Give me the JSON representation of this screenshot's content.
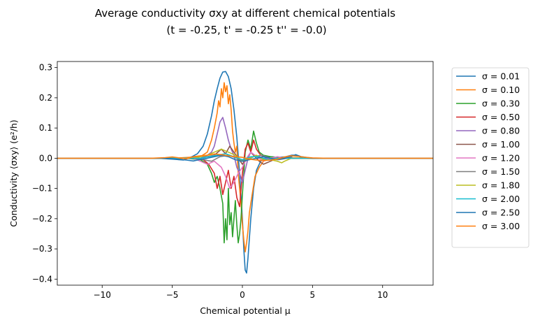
{
  "chart_data": {
    "type": "line",
    "title": "Average conductivity σxy at different chemical potentials",
    "subtitle": "(t = -0.25, t' = -0.25 t'' = -0.0)",
    "xlabel": "Chemical potential μ",
    "ylabel": "Conductivity ⟨σxy⟩ (e²/h)",
    "xlim": [
      -13.2,
      13.6
    ],
    "ylim": [
      -0.42,
      0.32
    ],
    "xticks": [
      -10,
      -5,
      0,
      5,
      10
    ],
    "yticks": [
      -0.4,
      -0.3,
      -0.2,
      -0.1,
      0.0,
      0.1,
      0.2,
      0.3
    ],
    "grid": false,
    "legend_position": "outside-right",
    "series": [
      {
        "name": "σ = 0.01",
        "color": "#1f77b4",
        "x": [
          -13.2,
          -6.0,
          -5.0,
          -4.2,
          -3.6,
          -3.2,
          -2.8,
          -2.5,
          -2.2,
          -2.0,
          -1.8,
          -1.6,
          -1.4,
          -1.2,
          -1.0,
          -0.8,
          -0.6,
          -0.4,
          -0.2,
          0.0,
          0.1,
          0.2,
          0.3,
          0.4,
          0.6,
          0.8,
          1.0,
          1.3,
          1.6,
          2.0,
          2.5,
          3.0,
          3.5,
          3.8,
          4.2,
          5.0,
          6.0,
          13.6
        ],
        "y": [
          0.0,
          0.0,
          -0.003,
          -0.006,
          0.005,
          0.015,
          0.04,
          0.08,
          0.14,
          0.19,
          0.23,
          0.265,
          0.285,
          0.287,
          0.27,
          0.23,
          0.16,
          0.07,
          -0.05,
          -0.2,
          -0.3,
          -0.37,
          -0.38,
          -0.33,
          -0.2,
          -0.1,
          -0.04,
          -0.01,
          0.0,
          0.005,
          0.003,
          0.004,
          0.01,
          0.01,
          0.003,
          0.0,
          0.0,
          0.0
        ]
      },
      {
        "name": "σ = 0.10",
        "color": "#ff7f0e",
        "x": [
          -13.2,
          -5.0,
          -3.0,
          -2.5,
          -2.2,
          -2.0,
          -1.8,
          -1.7,
          -1.6,
          -1.5,
          -1.4,
          -1.3,
          -1.2,
          -1.1,
          -1.0,
          -0.9,
          -0.8,
          -0.7,
          -0.6,
          -0.5,
          -0.4,
          -0.3,
          -0.2,
          -0.1,
          0.0,
          0.1,
          0.2,
          0.3,
          0.4,
          0.5,
          0.7,
          0.9,
          1.2,
          1.5,
          2.0,
          3.0,
          5.0,
          13.6
        ],
        "y": [
          0.0,
          0.0,
          0.005,
          0.02,
          0.06,
          0.1,
          0.15,
          0.19,
          0.17,
          0.23,
          0.2,
          0.25,
          0.22,
          0.24,
          0.18,
          0.21,
          0.16,
          0.09,
          0.05,
          0.02,
          0.04,
          -0.05,
          -0.1,
          -0.15,
          -0.22,
          -0.27,
          -0.31,
          -0.28,
          -0.24,
          -0.18,
          -0.12,
          -0.06,
          -0.03,
          -0.01,
          0.0,
          0.002,
          0.0,
          0.0
        ]
      },
      {
        "name": "σ = 0.30",
        "color": "#2ca02c",
        "x": [
          -13.2,
          -4.0,
          -3.0,
          -2.5,
          -2.2,
          -2.0,
          -1.8,
          -1.6,
          -1.4,
          -1.3,
          -1.2,
          -1.1,
          -1.0,
          -0.9,
          -0.8,
          -0.7,
          -0.6,
          -0.5,
          -0.4,
          -0.3,
          -0.2,
          -0.1,
          0.0,
          0.1,
          0.2,
          0.4,
          0.6,
          0.8,
          1.0,
          1.2,
          1.5,
          2.0,
          3.0,
          4.0,
          13.6
        ],
        "y": [
          0.0,
          0.0,
          -0.005,
          -0.02,
          -0.05,
          -0.08,
          -0.06,
          -0.1,
          -0.15,
          -0.28,
          -0.2,
          -0.27,
          -0.1,
          -0.22,
          -0.18,
          -0.26,
          -0.2,
          -0.14,
          -0.22,
          -0.28,
          -0.25,
          -0.2,
          -0.12,
          -0.05,
          0.02,
          0.06,
          0.03,
          0.09,
          0.05,
          0.02,
          0.01,
          0.005,
          0.0,
          0.0,
          0.0
        ]
      },
      {
        "name": "σ = 0.50",
        "color": "#d62728",
        "x": [
          -13.2,
          -3.5,
          -2.8,
          -2.4,
          -2.0,
          -1.8,
          -1.6,
          -1.4,
          -1.2,
          -1.0,
          -0.8,
          -0.6,
          -0.4,
          -0.2,
          0.0,
          0.2,
          0.4,
          0.6,
          0.8,
          1.0,
          1.3,
          1.6,
          2.0,
          3.0,
          13.6
        ],
        "y": [
          0.0,
          0.0,
          -0.005,
          -0.02,
          -0.05,
          -0.1,
          -0.06,
          -0.12,
          -0.08,
          -0.04,
          -0.1,
          -0.06,
          -0.13,
          -0.16,
          -0.05,
          0.03,
          0.05,
          0.02,
          0.06,
          0.03,
          0.01,
          0.005,
          0.0,
          0.0,
          0.0
        ]
      },
      {
        "name": "σ = 0.80",
        "color": "#9467bd",
        "x": [
          -13.2,
          -3.0,
          -2.5,
          -2.2,
          -2.0,
          -1.8,
          -1.6,
          -1.4,
          -1.2,
          -1.0,
          -0.8,
          -0.6,
          -0.4,
          -0.2,
          0.0,
          0.2,
          0.4,
          0.6,
          0.8,
          1.0,
          1.4,
          2.0,
          3.0,
          13.6
        ],
        "y": [
          0.0,
          0.0,
          0.01,
          0.02,
          0.04,
          0.08,
          0.12,
          0.135,
          0.1,
          0.06,
          0.03,
          0.01,
          -0.03,
          -0.05,
          -0.08,
          -0.04,
          0.0,
          0.02,
          0.01,
          0.0,
          0.0,
          0.0,
          0.0,
          0.0
        ]
      },
      {
        "name": "σ = 1.00",
        "color": "#8c564b",
        "x": [
          -13.2,
          -3.0,
          -2.5,
          -2.0,
          -1.5,
          -1.2,
          -0.9,
          -0.6,
          -0.3,
          0.0,
          0.3,
          0.6,
          0.9,
          1.2,
          1.5,
          2.0,
          2.5,
          3.0,
          13.6
        ],
        "y": [
          0.0,
          0.0,
          0.005,
          0.01,
          0.03,
          0.015,
          0.04,
          0.02,
          0.0,
          -0.02,
          0.0,
          0.02,
          0.005,
          -0.01,
          -0.02,
          -0.01,
          0.0,
          0.0,
          0.0
        ]
      },
      {
        "name": "σ = 1.20",
        "color": "#e377c2",
        "x": [
          -13.2,
          -3.5,
          -3.0,
          -2.5,
          -2.0,
          -1.5,
          -1.2,
          -0.9,
          -0.6,
          -0.3,
          0.0,
          0.3,
          0.6,
          0.9,
          1.2,
          1.5,
          2.0,
          2.5,
          3.0,
          3.5,
          13.6
        ],
        "y": [
          0.0,
          0.0,
          -0.01,
          -0.02,
          -0.01,
          -0.03,
          -0.06,
          -0.1,
          -0.08,
          -0.05,
          -0.03,
          0.0,
          0.02,
          0.01,
          0.0,
          -0.01,
          0.0,
          0.005,
          0.0,
          0.0,
          0.0
        ]
      },
      {
        "name": "σ = 1.50",
        "color": "#7f7f7f",
        "x": [
          -13.2,
          -3.5,
          -2.8,
          -2.2,
          -1.6,
          -1.0,
          -0.4,
          0.2,
          0.8,
          1.4,
          2.0,
          2.6,
          3.2,
          13.6
        ],
        "y": [
          0.0,
          0.0,
          -0.005,
          -0.01,
          0.005,
          0.01,
          0.0,
          -0.01,
          0.005,
          0.01,
          0.0,
          -0.005,
          0.0,
          0.0
        ]
      },
      {
        "name": "σ = 1.80",
        "color": "#bcbd22",
        "x": [
          -13.2,
          -3.5,
          -3.0,
          -2.5,
          -2.0,
          -1.5,
          -1.0,
          -0.5,
          0.0,
          0.5,
          1.0,
          1.5,
          2.0,
          2.5,
          2.8,
          3.0,
          3.5,
          13.6
        ],
        "y": [
          0.0,
          0.0,
          0.005,
          0.01,
          0.02,
          0.03,
          0.02,
          0.01,
          -0.01,
          0.0,
          0.01,
          -0.005,
          -0.005,
          -0.01,
          -0.015,
          -0.01,
          0.0,
          0.0
        ]
      },
      {
        "name": "σ = 2.00",
        "color": "#17becf",
        "x": [
          -13.2,
          -3.0,
          -2.4,
          -1.8,
          -1.2,
          -0.6,
          0.0,
          0.6,
          1.2,
          1.8,
          2.4,
          3.0,
          13.6
        ],
        "y": [
          0.0,
          0.0,
          0.005,
          0.01,
          0.015,
          0.005,
          -0.005,
          0.005,
          0.005,
          -0.005,
          0.0,
          0.0,
          0.0
        ]
      },
      {
        "name": "σ = 2.50",
        "color": "#1f77b4",
        "x": [
          -13.2,
          -5.5,
          -4.5,
          -4.0,
          -3.5,
          -3.0,
          -2.5,
          -2.0,
          -1.5,
          -1.0,
          -0.5,
          0.0,
          0.5,
          1.0,
          1.5,
          2.0,
          2.5,
          3.0,
          3.5,
          3.8,
          4.2,
          5.0,
          13.6
        ],
        "y": [
          0.0,
          0.0,
          -0.004,
          -0.006,
          -0.009,
          -0.004,
          0.0,
          0.005,
          0.01,
          0.005,
          -0.005,
          -0.01,
          -0.005,
          0.0,
          0.005,
          0.0,
          -0.005,
          0.0,
          0.005,
          0.012,
          0.005,
          0.0,
          0.0
        ]
      },
      {
        "name": "σ = 3.00",
        "color": "#ff7f0e",
        "x": [
          -13.2,
          -6.5,
          -5.5,
          -5.0,
          -4.5,
          -4.0,
          -3.5,
          -3.0,
          -2.5,
          -2.0,
          -1.5,
          -1.0,
          -0.5,
          0.0,
          0.5,
          1.0,
          1.5,
          2.0,
          2.5,
          3.0,
          3.5,
          4.0,
          4.5,
          5.0,
          6.0,
          13.6
        ],
        "y": [
          0.0,
          0.0,
          0.002,
          0.004,
          0.001,
          -0.002,
          0.005,
          0.008,
          0.01,
          0.014,
          0.012,
          0.008,
          0.005,
          0.003,
          -0.003,
          -0.006,
          -0.008,
          -0.006,
          -0.003,
          0.004,
          0.008,
          0.006,
          0.003,
          0.001,
          0.0,
          0.0
        ]
      }
    ]
  }
}
